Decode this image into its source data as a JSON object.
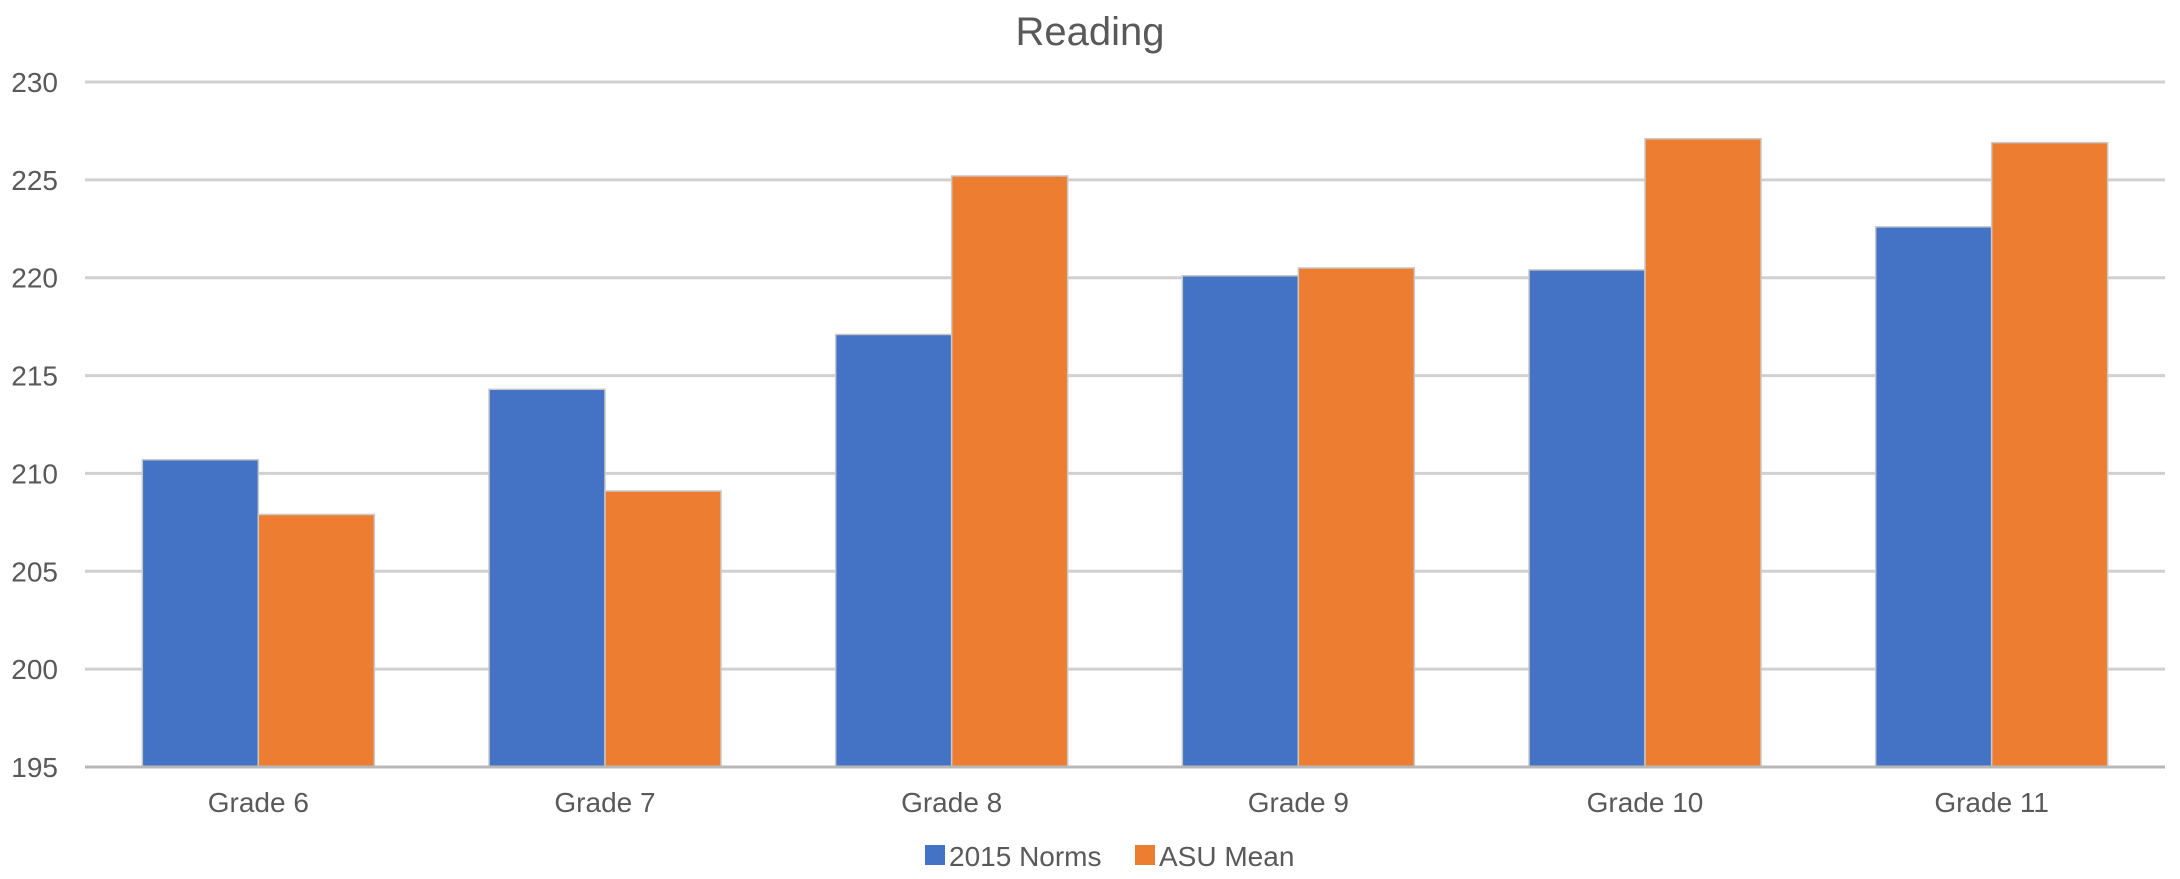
{
  "chart_data": {
    "type": "bar",
    "title": "Reading",
    "xlabel": "",
    "ylabel": "",
    "categories": [
      "Grade 6",
      "Grade 7",
      "Grade 8",
      "Grade 9",
      "Grade 10",
      "Grade 11"
    ],
    "series": [
      {
        "name": "2015 Norms",
        "color": "#4472C4",
        "values": [
          210.7,
          214.3,
          217.1,
          220.1,
          220.4,
          222.6
        ]
      },
      {
        "name": "ASU Mean",
        "color": "#ED7D31",
        "values": [
          207.9,
          209.1,
          225.2,
          220.5,
          227.1,
          226.9
        ]
      }
    ],
    "ylim": [
      195,
      230
    ],
    "yticks": [
      195,
      200,
      205,
      210,
      215,
      220,
      225,
      230
    ],
    "grid": true,
    "legend": "bottom-center"
  }
}
